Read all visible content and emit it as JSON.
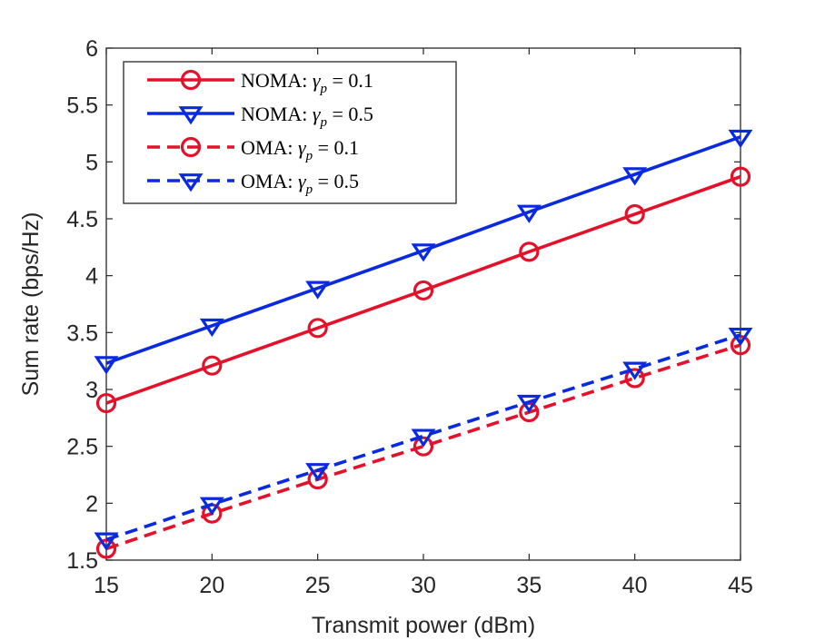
{
  "chart_data": {
    "type": "line",
    "title": "",
    "xlabel": "Transmit power (dBm)",
    "ylabel": "Sum rate (bps/Hz)",
    "xlim": [
      15,
      45
    ],
    "ylim": [
      1.5,
      6
    ],
    "x": [
      15,
      20,
      25,
      30,
      35,
      40,
      45
    ],
    "xticks": [
      "15",
      "20",
      "25",
      "30",
      "35",
      "40",
      "45"
    ],
    "yticks": [
      "1.5",
      "2",
      "2.5",
      "3",
      "3.5",
      "4",
      "4.5",
      "5",
      "5.5",
      "6"
    ],
    "grid": false,
    "legend_position": "top-left",
    "series": [
      {
        "name": "NOMA: γp = 0.1",
        "label_prefix": "NOMA: ",
        "gamma_value": "0.1",
        "color": "#e3122a",
        "linestyle": "solid",
        "marker": "circle",
        "values": [
          2.88,
          3.21,
          3.54,
          3.87,
          4.21,
          4.54,
          4.87
        ]
      },
      {
        "name": "NOMA: γp = 0.5",
        "label_prefix": "NOMA: ",
        "gamma_value": "0.5",
        "color": "#0a2ae0",
        "linestyle": "solid",
        "marker": "triangle-down",
        "values": [
          3.23,
          3.56,
          3.89,
          4.22,
          4.56,
          4.89,
          5.22
        ]
      },
      {
        "name": "OMA: γp = 0.1",
        "label_prefix": "OMA: ",
        "gamma_value": "0.1",
        "color": "#e3122a",
        "linestyle": "dashed",
        "marker": "circle",
        "values": [
          1.6,
          1.91,
          2.21,
          2.5,
          2.8,
          3.1,
          3.39
        ]
      },
      {
        "name": "OMA: γp = 0.5",
        "label_prefix": "OMA: ",
        "gamma_value": "0.5",
        "color": "#0a2ae0",
        "linestyle": "dashed",
        "marker": "triangle-down",
        "values": [
          1.68,
          1.99,
          2.29,
          2.59,
          2.89,
          3.18,
          3.48
        ]
      }
    ]
  }
}
